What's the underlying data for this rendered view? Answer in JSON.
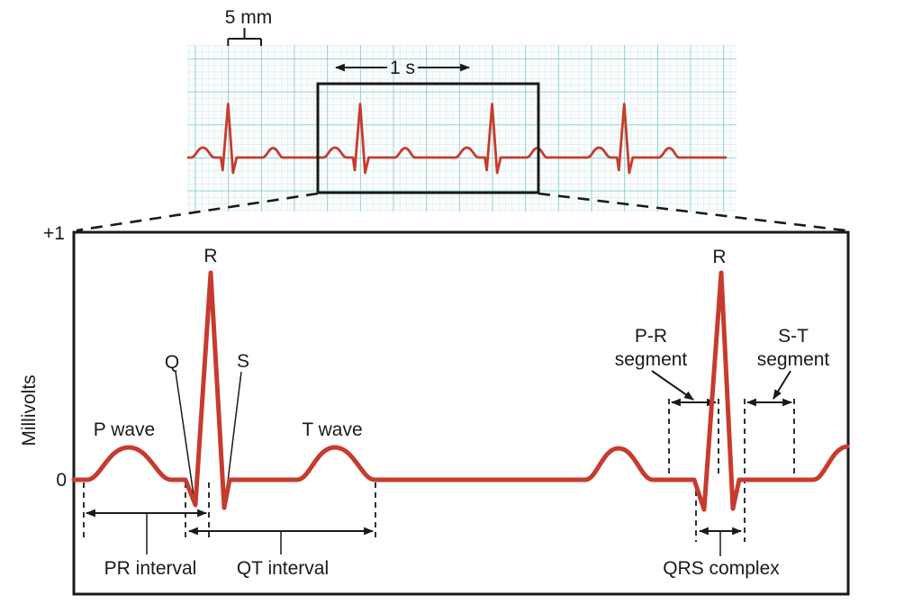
{
  "figure": {
    "strip": {
      "scale_label": "5 mm",
      "time_label": "1 s"
    },
    "axis": {
      "top_value": "+1",
      "zero_value": "0",
      "unit_label": "Millivolts"
    },
    "waves": {
      "r_left": "R",
      "q": "Q",
      "s": "S",
      "r_right": "R",
      "p_wave": "P wave",
      "t_wave": "T wave"
    },
    "intervals": {
      "pr_interval": "PR interval",
      "qt_interval": "QT interval",
      "qrs_complex": "QRS complex",
      "pr_segment": [
        "P-R",
        "segment"
      ],
      "st_segment": [
        "S-T",
        "segment"
      ]
    }
  },
  "colors": {
    "trace": "#c73b2e",
    "grid_minor": "#cfe9e9",
    "grid_major": "#82c9c9",
    "ink": "#1a1a1a",
    "paper": "#fbfdfd"
  }
}
